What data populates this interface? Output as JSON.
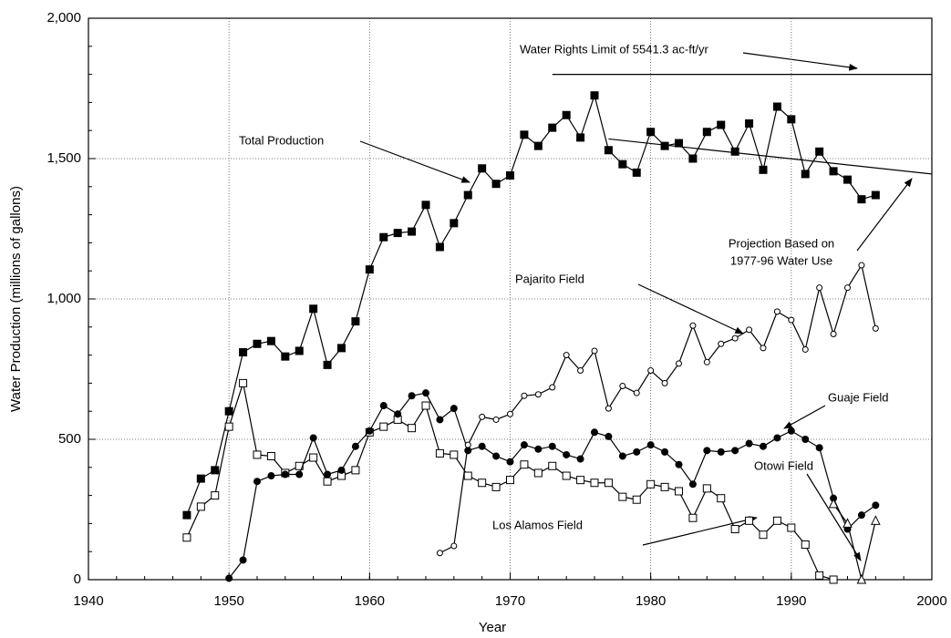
{
  "chart_data": {
    "type": "line",
    "xlabel": "Year",
    "ylabel": "Water Production (millions of gallons)",
    "x": [
      1947,
      1948,
      1949,
      1950,
      1951,
      1952,
      1953,
      1954,
      1955,
      1956,
      1957,
      1958,
      1959,
      1960,
      1961,
      1962,
      1963,
      1964,
      1965,
      1966,
      1967,
      1968,
      1969,
      1970,
      1971,
      1972,
      1973,
      1974,
      1975,
      1976,
      1977,
      1978,
      1979,
      1980,
      1981,
      1982,
      1983,
      1984,
      1985,
      1986,
      1987,
      1988,
      1989,
      1990,
      1991,
      1992,
      1993,
      1994,
      1995,
      1996
    ],
    "series": [
      {
        "name": "Total Production",
        "color": "#000000",
        "marker": "square-filled",
        "values": [
          230,
          360,
          390,
          600,
          810,
          840,
          850,
          795,
          815,
          965,
          765,
          825,
          920,
          1105,
          1220,
          1235,
          1240,
          1335,
          1185,
          1270,
          1370,
          1465,
          1410,
          1440,
          1585,
          1545,
          1610,
          1655,
          1575,
          1725,
          1530,
          1480,
          1450,
          1595,
          1545,
          1555,
          1500,
          1595,
          1620,
          1525,
          1625,
          1460,
          1685,
          1640,
          1445,
          1525,
          1455,
          1425,
          1355,
          1370
        ]
      },
      {
        "name": "Los Alamos Field",
        "color": "#000000",
        "marker": "square-open",
        "values": [
          150,
          260,
          300,
          545,
          700,
          445,
          440,
          380,
          405,
          435,
          350,
          370,
          390,
          525,
          545,
          570,
          540,
          620,
          450,
          445,
          370,
          345,
          330,
          355,
          410,
          380,
          405,
          370,
          355,
          345,
          345,
          295,
          285,
          340,
          330,
          315,
          220,
          325,
          290,
          180,
          210,
          160,
          210,
          185,
          125,
          15,
          0,
          null,
          null,
          null
        ]
      },
      {
        "name": "Guaje Field",
        "color": "#000000",
        "marker": "circle-filled",
        "values": [
          null,
          null,
          null,
          5,
          70,
          350,
          370,
          375,
          375,
          505,
          375,
          390,
          475,
          530,
          620,
          590,
          655,
          665,
          570,
          610,
          460,
          475,
          440,
          420,
          480,
          465,
          475,
          445,
          430,
          525,
          510,
          440,
          455,
          480,
          455,
          410,
          340,
          460,
          455,
          460,
          485,
          475,
          505,
          530,
          500,
          470,
          290,
          180,
          230,
          265
        ]
      },
      {
        "name": "Pajarito Field",
        "color": "#000000",
        "marker": "circle-open",
        "values": [
          null,
          null,
          null,
          null,
          null,
          null,
          null,
          null,
          null,
          null,
          null,
          null,
          null,
          null,
          null,
          null,
          null,
          null,
          95,
          120,
          480,
          580,
          570,
          590,
          655,
          660,
          685,
          800,
          745,
          815,
          610,
          690,
          665,
          745,
          700,
          770,
          905,
          775,
          840,
          860,
          890,
          825,
          955,
          925,
          820,
          1040,
          875,
          1040,
          1120,
          895
        ]
      },
      {
        "name": "Otowi Field",
        "color": "#000000",
        "marker": "triangle-open",
        "values": [
          null,
          null,
          null,
          null,
          null,
          null,
          null,
          null,
          null,
          null,
          null,
          null,
          null,
          null,
          null,
          null,
          null,
          null,
          null,
          null,
          null,
          null,
          null,
          null,
          null,
          null,
          null,
          null,
          null,
          null,
          null,
          null,
          null,
          null,
          null,
          null,
          null,
          null,
          null,
          null,
          null,
          null,
          null,
          null,
          null,
          null,
          270,
          200,
          0,
          210
        ]
      }
    ],
    "reference_lines": [
      {
        "name": "Water Rights Limit of 5541.3 ac-ft/yr",
        "x": [
          1973,
          2000
        ],
        "y": [
          1800,
          1800
        ]
      },
      {
        "name": [
          "Projection Based on",
          "1977-96 Water Use"
        ],
        "x": [
          1977,
          2000
        ],
        "y": [
          1570,
          1445
        ]
      }
    ],
    "xlim": [
      1940,
      2000
    ],
    "xticks": [
      1940,
      1950,
      1960,
      1970,
      1980,
      1990,
      2000
    ],
    "ylim": [
      0,
      2000
    ],
    "yticks": [
      0,
      500,
      {
        "value": 1000,
        "label": "1,000"
      },
      {
        "value": 1500,
        "label": "1,500"
      },
      {
        "value": 2000,
        "label": "2,000"
      }
    ],
    "grid": true
  }
}
